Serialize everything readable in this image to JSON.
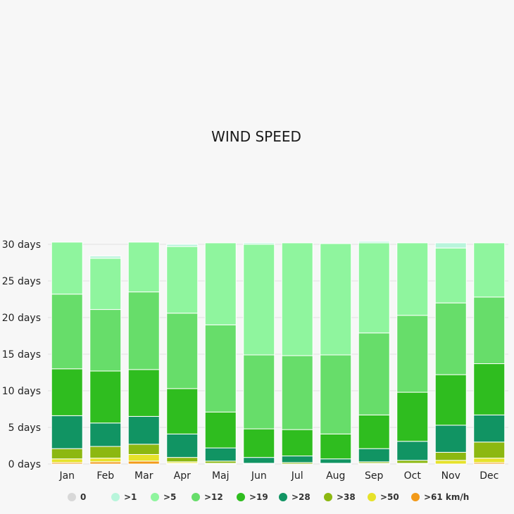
{
  "chart_data": {
    "type": "bar",
    "stacked": true,
    "title": "WIND SPEED",
    "xlabel": "",
    "ylabel": "",
    "ylim": [
      0,
      30
    ],
    "yticks": [
      0,
      5,
      10,
      15,
      20,
      25,
      30
    ],
    "ytick_labels": [
      "0 days",
      "5 days",
      "10 days",
      "15 days",
      "20 days",
      "25 days",
      "30 days"
    ],
    "categories": [
      "Jan",
      "Feb",
      "Mar",
      "Apr",
      "Maj",
      "Jun",
      "Jul",
      "Aug",
      "Sep",
      "Oct",
      "Nov",
      "Dec"
    ],
    "grid": true,
    "legend_position": "bottom",
    "series": [
      {
        "name": ">61 km/h",
        "color": "#f29a1a",
        "values": [
          0.2,
          0.3,
          0.4,
          0.1,
          0,
          0,
          0,
          0,
          0,
          0,
          0,
          0.2
        ]
      },
      {
        "name": ">50",
        "color": "#e6e22a",
        "values": [
          0.5,
          0.5,
          0.9,
          0.2,
          0.1,
          0,
          0,
          0,
          0.1,
          0.1,
          0.5,
          0.6
        ]
      },
      {
        "name": ">38",
        "color": "#8cb811",
        "values": [
          1.4,
          1.6,
          1.4,
          0.6,
          0.3,
          0.1,
          0.2,
          0.1,
          0.2,
          0.4,
          1.1,
          2.2
        ]
      },
      {
        "name": ">28",
        "color": "#119463",
        "values": [
          4.5,
          3.2,
          3.8,
          3.2,
          1.8,
          0.8,
          0.9,
          0.6,
          1.8,
          2.6,
          3.7,
          3.7
        ]
      },
      {
        "name": ">19",
        "color": "#2fbd1f",
        "values": [
          6.4,
          7.1,
          6.4,
          6.2,
          4.9,
          3.9,
          3.6,
          3.4,
          4.6,
          6.7,
          6.9,
          7.0
        ]
      },
      {
        "name": ">12",
        "color": "#67dd6a",
        "values": [
          10.2,
          8.4,
          10.6,
          10.3,
          11.9,
          10.1,
          10.1,
          10.8,
          11.2,
          10.5,
          9.8,
          9.1
        ]
      },
      {
        "name": ">5",
        "color": "#8ff59e",
        "values": [
          7.1,
          7.0,
          6.8,
          9.1,
          11.2,
          15.1,
          15.4,
          15.2,
          12.3,
          9.9,
          7.5,
          7.4
        ]
      },
      {
        "name": ">1",
        "color": "#b8f5db",
        "values": [
          0,
          0.3,
          0,
          0.3,
          0,
          0.2,
          0,
          0,
          0.2,
          0,
          0.7,
          0
        ]
      },
      {
        "name": "0",
        "color": "#d8d8d8",
        "values": [
          0,
          0,
          0,
          0,
          0,
          0,
          0,
          0,
          0,
          0,
          0,
          0
        ]
      }
    ],
    "legend_order": [
      "0",
      ">1",
      ">5",
      ">12",
      ">19",
      ">28",
      ">38",
      ">50",
      ">61 km/h"
    ]
  }
}
